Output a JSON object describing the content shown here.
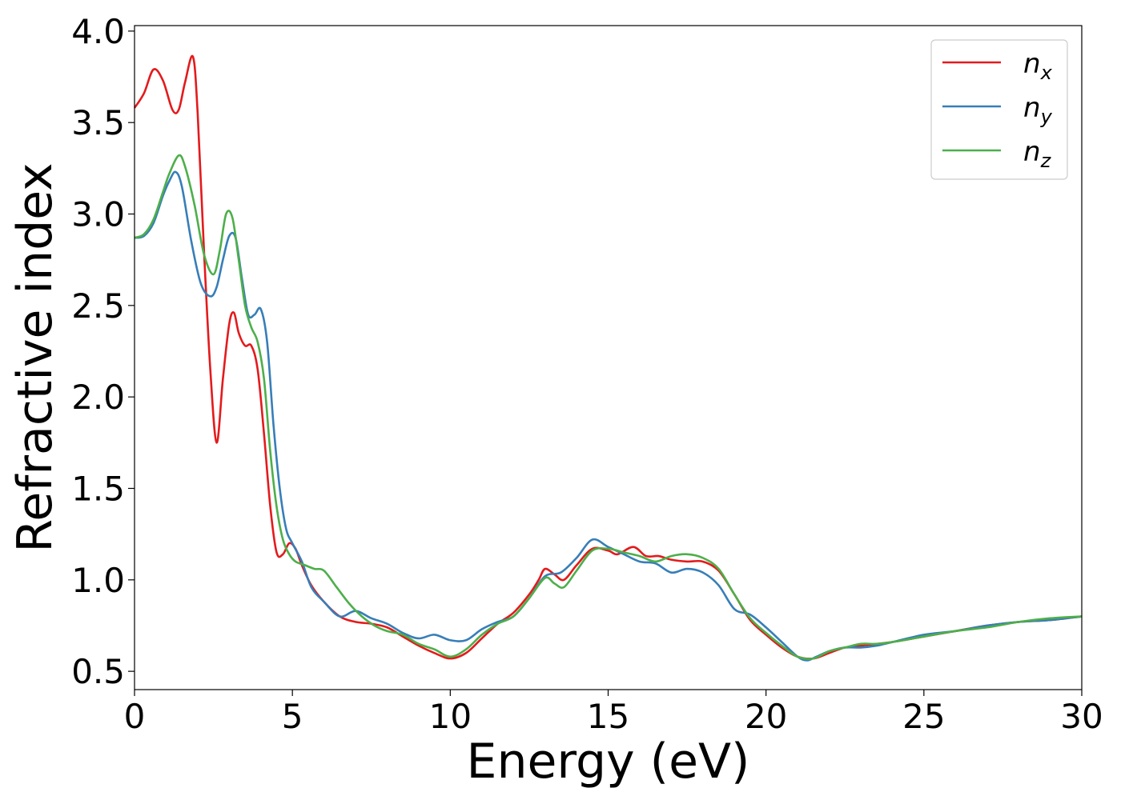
{
  "chart_data": {
    "type": "line",
    "title": "",
    "xlabel": "Energy (eV)",
    "ylabel": "Refractive index",
    "xlim": [
      0,
      30
    ],
    "ylim": [
      0.4,
      4.03
    ],
    "xticks": [
      "0",
      "5",
      "10",
      "15",
      "20",
      "25",
      "30"
    ],
    "yticks": [
      "0.5",
      "1.0",
      "1.5",
      "2.0",
      "2.5",
      "3.0",
      "3.5",
      "4.0"
    ],
    "grid": false,
    "legend_position": "top-right",
    "series": [
      {
        "name": "n",
        "subscript": "x",
        "color": "#e41a1c",
        "x": [
          0,
          0.3,
          0.6,
          0.9,
          1.2,
          1.4,
          1.6,
          1.85,
          2.0,
          2.2,
          2.4,
          2.6,
          2.8,
          3.0,
          3.15,
          3.3,
          3.5,
          3.7,
          3.9,
          4.1,
          4.3,
          4.5,
          4.7,
          4.9,
          5.1,
          5.3,
          5.6,
          6.0,
          6.5,
          7.0,
          7.5,
          8.0,
          8.5,
          9.0,
          9.5,
          10.0,
          10.5,
          11.0,
          11.5,
          12.0,
          12.5,
          12.8,
          13.0,
          13.3,
          13.6,
          14.0,
          14.5,
          15.0,
          15.3,
          15.8,
          16.2,
          16.6,
          17.0,
          17.5,
          18.0,
          18.5,
          19.0,
          19.5,
          20.0,
          20.5,
          21.0,
          21.5,
          22.0,
          22.5,
          23.0,
          23.5,
          24.0,
          25.0,
          26.0,
          27.0,
          28.0,
          29.0,
          30.0
        ],
        "y": [
          3.58,
          3.66,
          3.79,
          3.73,
          3.57,
          3.57,
          3.72,
          3.86,
          3.55,
          2.8,
          2.15,
          1.75,
          2.1,
          2.4,
          2.46,
          2.35,
          2.28,
          2.28,
          2.15,
          1.8,
          1.4,
          1.15,
          1.14,
          1.2,
          1.17,
          1.08,
          0.97,
          0.88,
          0.8,
          0.77,
          0.76,
          0.74,
          0.69,
          0.64,
          0.6,
          0.57,
          0.6,
          0.68,
          0.76,
          0.82,
          0.92,
          1.0,
          1.06,
          1.03,
          1.0,
          1.08,
          1.17,
          1.16,
          1.14,
          1.18,
          1.13,
          1.13,
          1.11,
          1.1,
          1.1,
          1.05,
          0.92,
          0.78,
          0.7,
          0.63,
          0.58,
          0.57,
          0.6,
          0.63,
          0.64,
          0.65,
          0.66,
          0.69,
          0.72,
          0.75,
          0.77,
          0.78,
          0.8
        ]
      },
      {
        "name": "n",
        "subscript": "y",
        "color": "#377eb8",
        "x": [
          0,
          0.3,
          0.6,
          0.9,
          1.1,
          1.3,
          1.5,
          1.8,
          2.1,
          2.4,
          2.6,
          2.8,
          3.0,
          3.2,
          3.4,
          3.6,
          3.8,
          4.0,
          4.2,
          4.4,
          4.6,
          4.8,
          5.0,
          5.3,
          5.6,
          6.0,
          6.5,
          7.0,
          7.5,
          8.0,
          8.5,
          9.0,
          9.5,
          10.0,
          10.5,
          11.0,
          11.5,
          12.0,
          12.5,
          13.0,
          13.5,
          14.0,
          14.5,
          15.0,
          15.5,
          16.0,
          16.5,
          17.0,
          17.5,
          18.0,
          18.5,
          19.0,
          19.5,
          20.0,
          20.5,
          21.0,
          21.3,
          21.6,
          22.0,
          22.5,
          23.0,
          23.5,
          24.0,
          25.0,
          26.0,
          27.0,
          28.0,
          29.0,
          30.0
        ],
        "y": [
          2.87,
          2.88,
          2.95,
          3.1,
          3.18,
          3.23,
          3.15,
          2.85,
          2.62,
          2.55,
          2.6,
          2.75,
          2.88,
          2.87,
          2.65,
          2.45,
          2.45,
          2.48,
          2.3,
          1.85,
          1.5,
          1.28,
          1.2,
          1.1,
          0.96,
          0.88,
          0.8,
          0.83,
          0.79,
          0.76,
          0.71,
          0.68,
          0.7,
          0.67,
          0.67,
          0.73,
          0.77,
          0.8,
          0.9,
          1.02,
          1.04,
          1.12,
          1.22,
          1.18,
          1.14,
          1.1,
          1.09,
          1.04,
          1.06,
          1.04,
          0.97,
          0.84,
          0.81,
          0.74,
          0.66,
          0.58,
          0.56,
          0.58,
          0.61,
          0.63,
          0.63,
          0.64,
          0.66,
          0.7,
          0.72,
          0.75,
          0.77,
          0.78,
          0.8
        ]
      },
      {
        "name": "n",
        "subscript": "z",
        "color": "#4daf4a",
        "x": [
          0,
          0.3,
          0.6,
          0.9,
          1.1,
          1.4,
          1.6,
          1.9,
          2.2,
          2.5,
          2.7,
          2.9,
          3.1,
          3.3,
          3.5,
          3.7,
          3.9,
          4.1,
          4.3,
          4.5,
          4.7,
          4.9,
          5.1,
          5.4,
          5.7,
          6.0,
          6.4,
          6.8,
          7.2,
          7.6,
          8.0,
          8.5,
          9.0,
          9.5,
          10.0,
          10.5,
          11.0,
          11.5,
          12.0,
          12.5,
          13.0,
          13.3,
          13.6,
          14.0,
          14.5,
          15.0,
          15.5,
          16.0,
          16.5,
          17.0,
          17.5,
          18.0,
          18.5,
          19.0,
          19.5,
          20.0,
          20.5,
          21.0,
          21.5,
          22.0,
          22.5,
          23.0,
          23.5,
          24.0,
          25.0,
          26.0,
          27.0,
          28.0,
          29.0,
          30.0
        ],
        "y": [
          2.87,
          2.89,
          2.97,
          3.12,
          3.22,
          3.32,
          3.26,
          3.05,
          2.78,
          2.67,
          2.8,
          3.0,
          2.98,
          2.75,
          2.5,
          2.38,
          2.3,
          2.1,
          1.7,
          1.4,
          1.22,
          1.14,
          1.1,
          1.08,
          1.06,
          1.05,
          0.96,
          0.87,
          0.8,
          0.75,
          0.72,
          0.7,
          0.65,
          0.62,
          0.58,
          0.62,
          0.7,
          0.76,
          0.8,
          0.9,
          1.01,
          0.98,
          0.96,
          1.05,
          1.16,
          1.17,
          1.15,
          1.13,
          1.1,
          1.13,
          1.14,
          1.12,
          1.06,
          0.92,
          0.79,
          0.71,
          0.64,
          0.58,
          0.57,
          0.61,
          0.63,
          0.65,
          0.65,
          0.66,
          0.69,
          0.72,
          0.74,
          0.77,
          0.79,
          0.8
        ]
      }
    ]
  }
}
